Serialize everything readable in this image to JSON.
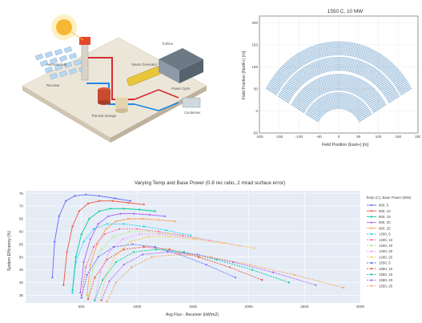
{
  "figure_diagram": {
    "labels": [
      "Receiver",
      "Heliostat field",
      "Thermal Storage",
      "Power Cycle",
      "Condenser",
      "Turbine",
      "Steam Generator"
    ]
  },
  "chart_data": [
    {
      "type": "scatter",
      "title": "1550 C, 10 MW",
      "xlabel": "Field Position (East+) [m]",
      "ylabel": "Field Position (North+) [m]",
      "xlim": [
        -200,
        200
      ],
      "ylim": [
        -50,
        215
      ],
      "xticks": [
        "-200",
        "-150",
        "-100",
        "-50",
        "0",
        "50",
        "100",
        "150",
        "200"
      ],
      "yticks": [
        "-50",
        "0",
        "50",
        "100",
        "150",
        "200"
      ],
      "grid": true,
      "color": "#2f79b5",
      "field": {
        "inner_radius": 60,
        "outer_radius": 212,
        "receiver_y": 0,
        "half_angle_deg": 60,
        "row_spacing": 3.2,
        "gap_radii": [
          98,
          142,
          178
        ]
      }
    },
    {
      "type": "line",
      "title": "Varying Temp and Base Power (0.8 rec ratio, 2 mrad surface error)",
      "xlabel": "Avg Flux - Receiver (kW/m2)",
      "ylabel": "System Efficiency (%)",
      "xlim": [
        0,
        3000
      ],
      "ylim": [
        32,
        76
      ],
      "xticks": [
        "500",
        "1000",
        "1500",
        "2000",
        "2500",
        "3000"
      ],
      "yticks": [
        "35",
        "40",
        "45",
        "50",
        "55",
        "60",
        "65",
        "70",
        "75"
      ],
      "grid": true,
      "legend_title": "Temp (C), Base Power (MW)",
      "legend_position": "right",
      "series": [
        {
          "name": "900, 5",
          "color": "#636efa",
          "x": [
            240,
            260,
            300,
            360,
            440,
            540,
            660,
            800,
            940
          ],
          "y": [
            42,
            56,
            66,
            72,
            74,
            74.5,
            74,
            73,
            72
          ]
        },
        {
          "name": "900, 10",
          "color": "#ef553b",
          "x": [
            340,
            370,
            420,
            480,
            560,
            660,
            780,
            920,
            1060
          ],
          "y": [
            39,
            52,
            62,
            68,
            71,
            72,
            72,
            71.3,
            70.6
          ]
        },
        {
          "name": "900, 15",
          "color": "#00cc96",
          "x": [
            420,
            450,
            500,
            570,
            660,
            760,
            880,
            1020,
            1160
          ],
          "y": [
            37,
            50,
            59,
            65,
            68,
            69,
            69,
            68.6,
            68
          ]
        },
        {
          "name": "900, 20",
          "color": "#ab63fa",
          "x": [
            490,
            520,
            580,
            650,
            740,
            850,
            970,
            1110,
            1250
          ],
          "y": [
            36,
            48,
            57,
            63,
            66,
            67,
            67,
            66.6,
            66
          ]
        },
        {
          "name": "900, 25",
          "color": "#ffa15a",
          "x": [
            550,
            580,
            640,
            720,
            810,
            920,
            1050,
            1190,
            1340
          ],
          "y": [
            35,
            47,
            55,
            61,
            64,
            65,
            65,
            64.6,
            64
          ]
        },
        {
          "name": "1200, 5",
          "color": "#19d3f3",
          "x": [
            420,
            450,
            520,
            610,
            730,
            880,
            1060,
            1260,
            1480
          ],
          "y": [
            36,
            48,
            56,
            61,
            63,
            63,
            62,
            60.5,
            58.5
          ]
        },
        {
          "name": "1200, 10",
          "color": "#ff6692",
          "x": [
            500,
            540,
            610,
            710,
            840,
            1000,
            1190,
            1410,
            1650
          ],
          "y": [
            35,
            46,
            54,
            59,
            61,
            61,
            60,
            58.5,
            56.5
          ]
        },
        {
          "name": "1200, 15",
          "color": "#b6e880",
          "x": [
            560,
            600,
            680,
            790,
            930,
            1100,
            1300,
            1530,
            1790
          ],
          "y": [
            34,
            45,
            53,
            58,
            60,
            60,
            59,
            57.5,
            55.5
          ]
        },
        {
          "name": "1200, 20",
          "color": "#ff97ff",
          "x": [
            620,
            670,
            750,
            870,
            1020,
            1200,
            1410,
            1650,
            1920
          ],
          "y": [
            33.5,
            44,
            52,
            57,
            59,
            59,
            58,
            56.5,
            54.5
          ]
        },
        {
          "name": "1200, 25",
          "color": "#fecb52",
          "x": [
            670,
            720,
            810,
            940,
            1100,
            1290,
            1510,
            1760,
            2050
          ],
          "y": [
            33,
            43,
            51,
            56,
            58,
            58,
            57,
            55.5,
            53.5
          ]
        },
        {
          "name": "1550, 5",
          "color": "#636efa",
          "x": [
            500,
            550,
            650,
            790,
            960,
            1160,
            1380,
            1620,
            1880
          ],
          "y": [
            34,
            43,
            50,
            54,
            55,
            54,
            51,
            47,
            42
          ]
        },
        {
          "name": "1550, 10",
          "color": "#ef553b",
          "x": [
            560,
            620,
            730,
            880,
            1060,
            1290,
            1550,
            1830,
            2120
          ],
          "y": [
            33.5,
            42,
            49,
            53,
            54,
            53,
            50,
            46,
            41
          ]
        },
        {
          "name": "1550, 15",
          "color": "#00cc96",
          "x": [
            620,
            690,
            810,
            970,
            1170,
            1420,
            1710,
            2030,
            2360
          ],
          "y": [
            33,
            41,
            48,
            52,
            53,
            52,
            49,
            45,
            40
          ]
        },
        {
          "name": "1550, 20",
          "color": "#ab63fa",
          "x": [
            680,
            750,
            880,
            1050,
            1270,
            1540,
            1860,
            2220,
            2600
          ],
          "y": [
            33,
            40.5,
            47,
            51,
            52,
            51,
            48,
            44,
            39
          ]
        },
        {
          "name": "1550, 25",
          "color": "#ffa15a",
          "x": [
            730,
            810,
            950,
            1130,
            1370,
            1660,
            2010,
            2410,
            2850
          ],
          "y": [
            32.5,
            40,
            46,
            50,
            51,
            50,
            47,
            43,
            38
          ]
        }
      ]
    }
  ]
}
